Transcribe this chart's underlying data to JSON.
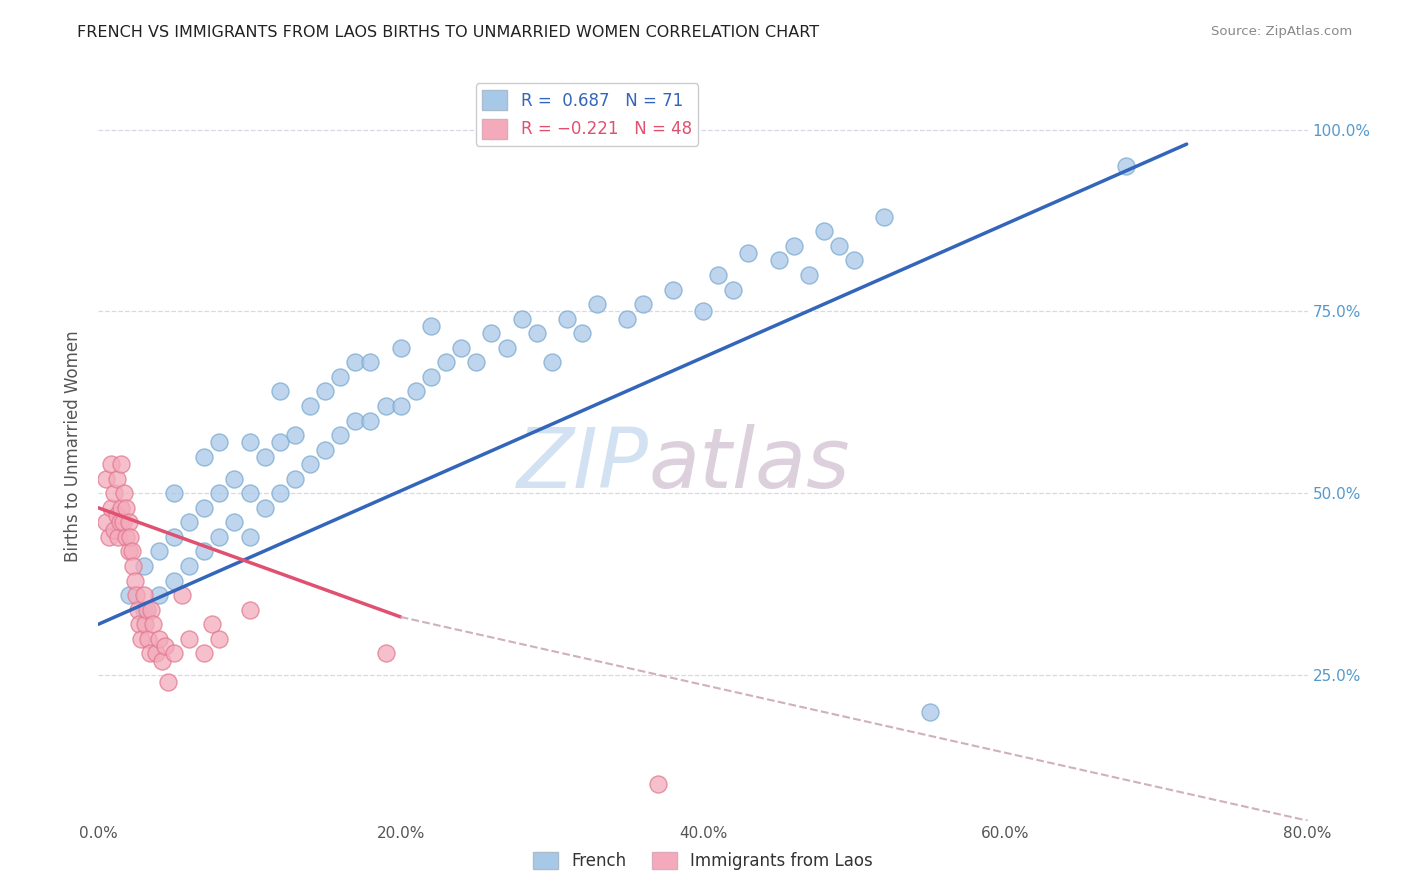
{
  "title": "FRENCH VS IMMIGRANTS FROM LAOS BIRTHS TO UNMARRIED WOMEN CORRELATION CHART",
  "source": "Source: ZipAtlas.com",
  "ylabel": "Births to Unmarried Women",
  "xlim": [
    0.0,
    0.8
  ],
  "ylim": [
    0.05,
    1.08
  ],
  "watermark_zip": "ZIP",
  "watermark_atlas": "atlas",
  "french_color": "#a8c8e8",
  "french_edge": "#7aaad0",
  "laos_color": "#f4aabb",
  "laos_edge": "#e07890",
  "french_line_color": "#3366bb",
  "laos_line_color": "#e05070",
  "laos_dash_color": "#d0b0bb",
  "grid_color": "#d8d8e8",
  "right_tick_color": "#5599cc",
  "french_scatter_x": [
    0.02,
    0.03,
    0.03,
    0.04,
    0.04,
    0.05,
    0.05,
    0.05,
    0.06,
    0.06,
    0.07,
    0.07,
    0.07,
    0.08,
    0.08,
    0.08,
    0.09,
    0.09,
    0.1,
    0.1,
    0.1,
    0.11,
    0.11,
    0.12,
    0.12,
    0.12,
    0.13,
    0.13,
    0.14,
    0.14,
    0.15,
    0.15,
    0.16,
    0.16,
    0.17,
    0.17,
    0.18,
    0.18,
    0.19,
    0.2,
    0.2,
    0.21,
    0.22,
    0.22,
    0.23,
    0.24,
    0.25,
    0.26,
    0.27,
    0.28,
    0.29,
    0.3,
    0.31,
    0.32,
    0.33,
    0.35,
    0.36,
    0.38,
    0.4,
    0.41,
    0.42,
    0.43,
    0.45,
    0.46,
    0.47,
    0.48,
    0.49,
    0.5,
    0.52,
    0.55,
    0.68
  ],
  "french_scatter_y": [
    0.36,
    0.34,
    0.4,
    0.36,
    0.42,
    0.38,
    0.44,
    0.5,
    0.4,
    0.46,
    0.42,
    0.48,
    0.55,
    0.44,
    0.5,
    0.57,
    0.46,
    0.52,
    0.44,
    0.5,
    0.57,
    0.48,
    0.55,
    0.5,
    0.57,
    0.64,
    0.52,
    0.58,
    0.54,
    0.62,
    0.56,
    0.64,
    0.58,
    0.66,
    0.6,
    0.68,
    0.6,
    0.68,
    0.62,
    0.62,
    0.7,
    0.64,
    0.66,
    0.73,
    0.68,
    0.7,
    0.68,
    0.72,
    0.7,
    0.74,
    0.72,
    0.68,
    0.74,
    0.72,
    0.76,
    0.74,
    0.76,
    0.78,
    0.75,
    0.8,
    0.78,
    0.83,
    0.82,
    0.84,
    0.8,
    0.86,
    0.84,
    0.82,
    0.88,
    0.2,
    0.95
  ],
  "laos_scatter_x": [
    0.005,
    0.005,
    0.007,
    0.008,
    0.008,
    0.01,
    0.01,
    0.012,
    0.012,
    0.013,
    0.014,
    0.015,
    0.015,
    0.016,
    0.017,
    0.018,
    0.018,
    0.02,
    0.02,
    0.021,
    0.022,
    0.023,
    0.024,
    0.025,
    0.026,
    0.027,
    0.028,
    0.03,
    0.031,
    0.032,
    0.033,
    0.034,
    0.035,
    0.036,
    0.038,
    0.04,
    0.042,
    0.044,
    0.046,
    0.05,
    0.055,
    0.06,
    0.07,
    0.075,
    0.08,
    0.1,
    0.19,
    0.37
  ],
  "laos_scatter_y": [
    0.46,
    0.52,
    0.44,
    0.48,
    0.54,
    0.45,
    0.5,
    0.47,
    0.52,
    0.44,
    0.46,
    0.48,
    0.54,
    0.46,
    0.5,
    0.44,
    0.48,
    0.42,
    0.46,
    0.44,
    0.42,
    0.4,
    0.38,
    0.36,
    0.34,
    0.32,
    0.3,
    0.36,
    0.32,
    0.34,
    0.3,
    0.28,
    0.34,
    0.32,
    0.28,
    0.3,
    0.27,
    0.29,
    0.24,
    0.28,
    0.36,
    0.3,
    0.28,
    0.32,
    0.3,
    0.34,
    0.28,
    0.1
  ],
  "french_line_x": [
    0.0,
    0.72
  ],
  "french_line_y": [
    0.32,
    0.98
  ],
  "laos_line_x0": 0.0,
  "laos_line_x1": 0.2,
  "laos_line_x2": 0.8,
  "laos_line_y0": 0.48,
  "laos_line_y1": 0.33,
  "laos_line_y2": 0.05
}
